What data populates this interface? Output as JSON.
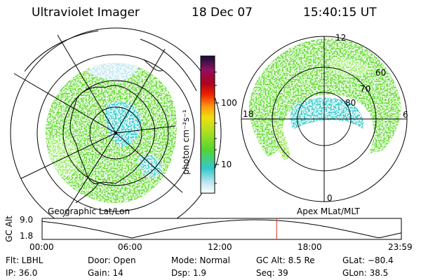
{
  "header": {
    "title": "Ultraviolet Imager",
    "date": "18 Dec 07",
    "time": "15:40:15 UT"
  },
  "left_panel": {
    "caption": "Geographic Lat/Lon"
  },
  "right_panel": {
    "caption": "Apex MLat/MLT",
    "mlt_labels": {
      "top": "12",
      "left": "18",
      "right": "6",
      "bottom": "0"
    },
    "lat_labels": [
      "60",
      "70",
      "80"
    ]
  },
  "colorbar": {
    "unit_label": "photon cm⁻²s⁻¹",
    "tick_labels": [
      "100",
      "10"
    ],
    "scale": "log"
  },
  "altitude_plot": {
    "ylabel": "GC Alt",
    "y_ticks": [
      "9.0",
      "1.8"
    ],
    "x_ticks": [
      "00:00",
      "06:00",
      "12:00",
      "18:00",
      "23:59"
    ],
    "current_time_hours": 15.67,
    "marker_color": "#e03020"
  },
  "status": {
    "flt": "Flt: LBHL",
    "ip": "IP: 36.0",
    "door": "Door: Open",
    "gain": "Gain: 14",
    "mode": "Mode: Normal",
    "dsp": "Dsp:     1.9",
    "gc_alt": "GC Alt: 8.5 Re",
    "seq": "Seq: 39",
    "glat": "GLat: −80.4",
    "glon": "GLon:  38.5"
  },
  "colors": {
    "aurora_green": "#66dd33",
    "aurora_light_green": "#99ee66",
    "aurora_cyan": "#33cccc",
    "aurora_pale": "#aaddee"
  }
}
